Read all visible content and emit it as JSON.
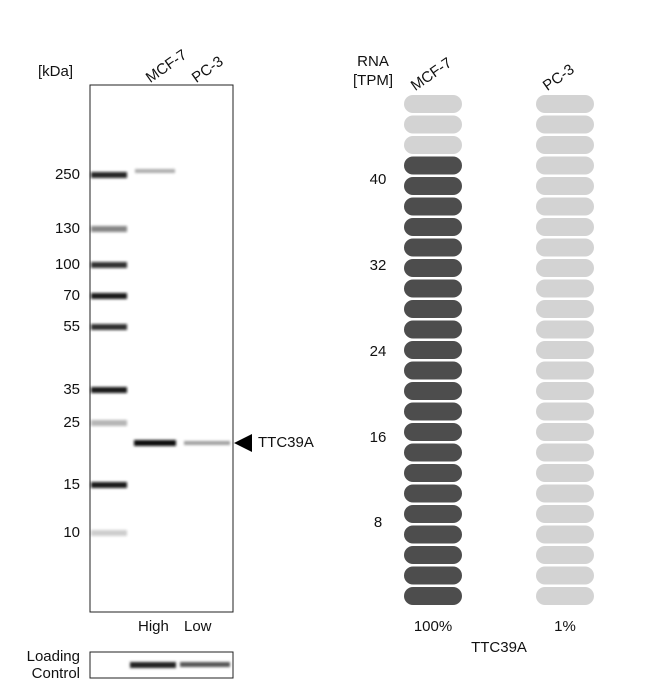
{
  "blot": {
    "unit_label": "[kDa]",
    "lanes": [
      "MCF-7",
      "PC-3"
    ],
    "markers": [
      "250",
      "130",
      "100",
      "70",
      "55",
      "35",
      "25",
      "15",
      "10"
    ],
    "target": "TTC39A",
    "lane_levels": [
      "High",
      "Low"
    ],
    "loading_control": [
      "Loading",
      "Control"
    ]
  },
  "rna": {
    "axis_label": [
      "RNA",
      "[TPM]"
    ],
    "ticks": [
      "40",
      "32",
      "24",
      "16",
      "8"
    ],
    "total_pills": 25,
    "gene": "TTC39A",
    "columns": [
      {
        "name": "MCF-7",
        "percent": "100%",
        "filled": 22
      },
      {
        "name": "PC-3",
        "percent": "1%",
        "filled": 0
      }
    ]
  }
}
